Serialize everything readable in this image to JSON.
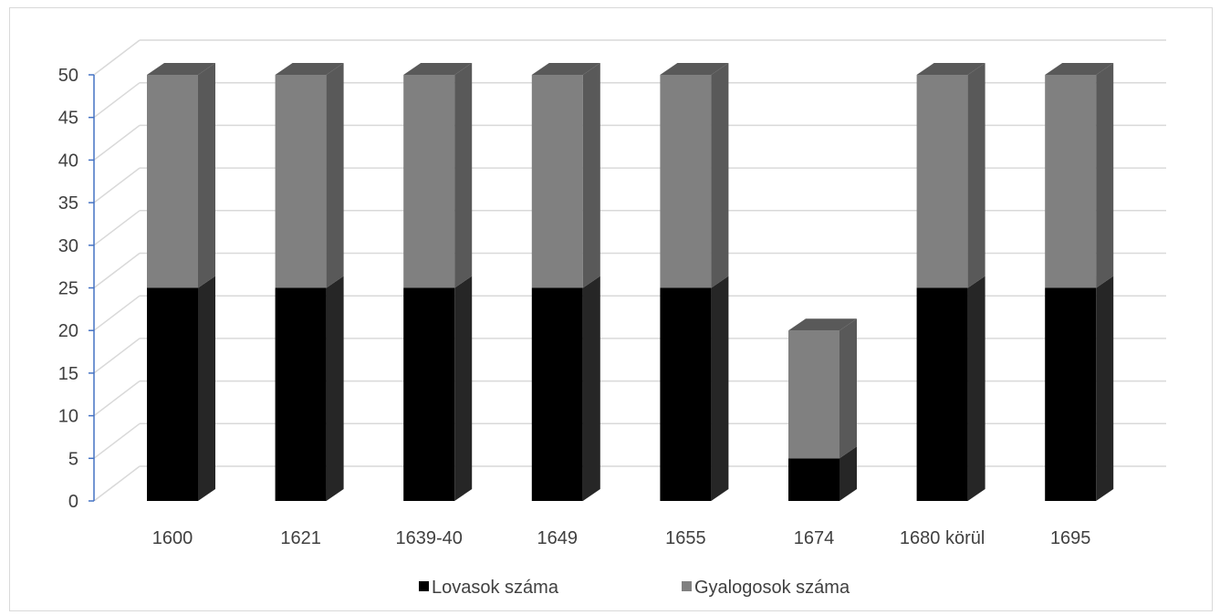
{
  "chart_data": {
    "type": "bar",
    "stacked": true,
    "style": "3d-column",
    "categories": [
      "1600",
      "1621",
      "1639-40",
      "1649",
      "1655",
      "1674",
      "1680 körül",
      "1695"
    ],
    "series": [
      {
        "name": "Lovasok száma",
        "values": [
          25,
          25,
          25,
          25,
          25,
          5,
          25,
          25
        ],
        "color": "#000000"
      },
      {
        "name": "Gyalogosok száma",
        "values": [
          25,
          25,
          25,
          25,
          25,
          15,
          25,
          25
        ],
        "color": "#808080"
      }
    ],
    "ylim": [
      0,
      50
    ],
    "ytick_step": 5,
    "yticks": [
      "0",
      "5",
      "10",
      "15",
      "20",
      "25",
      "30",
      "35",
      "40",
      "45",
      "50"
    ],
    "grid": true,
    "legend_position": "bottom",
    "title": "",
    "xlabel": "",
    "ylabel": ""
  },
  "colors": {
    "grid": "#d9d9d9",
    "axis": "#4472c4",
    "side_dark": "#262626",
    "side_gray": "#595959",
    "top": "#595959"
  }
}
